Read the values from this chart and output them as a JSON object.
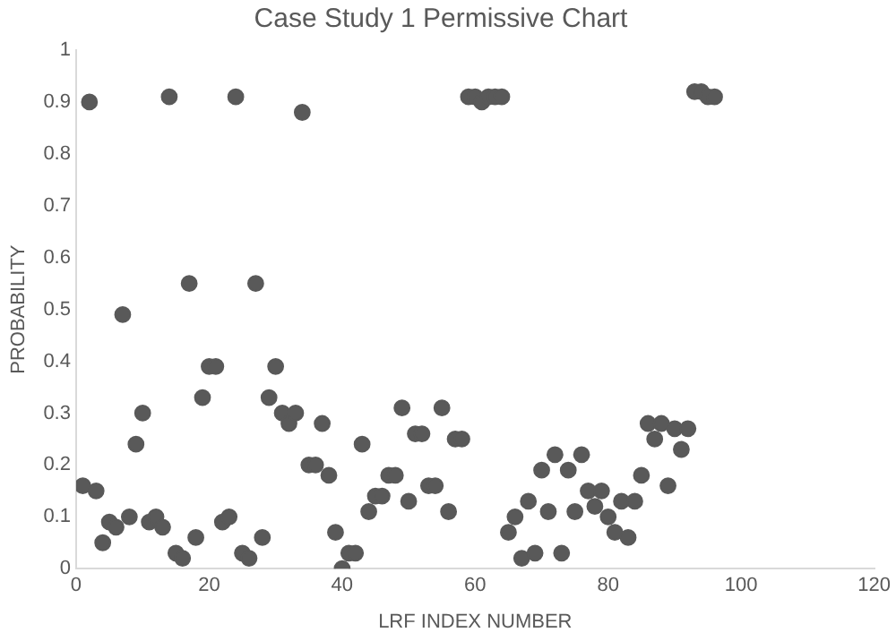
{
  "chart_data": {
    "type": "scatter",
    "title": "Case Study 1 Permissive Chart",
    "xlabel": "LRF INDEX NUMBER",
    "ylabel": "PROBABILITY",
    "x": [
      1,
      2,
      3,
      4,
      5,
      6,
      7,
      8,
      9,
      10,
      11,
      12,
      13,
      14,
      15,
      16,
      17,
      18,
      19,
      20,
      21,
      22,
      23,
      24,
      25,
      26,
      27,
      28,
      29,
      30,
      31,
      32,
      33,
      34,
      35,
      36,
      37,
      38,
      39,
      40,
      41,
      42,
      43,
      44,
      45,
      46,
      47,
      48,
      49,
      50,
      51,
      52,
      53,
      54,
      55,
      56,
      57,
      58,
      59,
      60,
      61,
      62,
      63,
      64,
      65,
      66,
      67,
      68,
      69,
      70,
      71,
      72,
      73,
      74,
      75,
      76,
      77,
      78,
      79,
      80,
      81,
      82,
      83,
      84,
      85,
      86,
      87,
      88,
      89,
      90,
      91,
      92,
      93,
      94,
      95,
      96
    ],
    "series": [
      {
        "color": "#595959",
        "values": [
          0.16,
          0.9,
          0.15,
          0.05,
          0.09,
          0.08,
          0.49,
          0.1,
          0.24,
          0.3,
          0.09,
          0.1,
          0.08,
          0.91,
          0.03,
          0.02,
          0.55,
          0.06,
          0.33,
          0.39,
          0.39,
          0.09,
          0.1,
          0.91,
          0.03,
          0.02,
          0.55,
          0.06,
          0.33,
          0.39,
          0.3,
          0.28,
          0.3,
          0.88,
          0.2,
          0.2,
          0.28,
          0.18,
          0.07,
          0,
          0.03,
          0.03,
          0.24,
          0.11,
          0.14,
          0.14,
          0.18,
          0.18,
          0.31,
          0.13,
          0.26,
          0.26,
          0.16,
          0.16,
          0.31,
          0.11,
          0.25,
          0.25,
          0.91,
          0.91,
          0.9,
          0.91,
          0.91,
          0.91,
          0.07,
          0.1,
          0.02,
          0.13,
          0.03,
          0.19,
          0.11,
          0.22,
          0.03,
          0.19,
          0.11,
          0.22,
          0.15,
          0.12,
          0.15,
          0.1,
          0.07,
          0.13,
          0.06,
          0.13,
          0.18,
          0.28,
          0.25,
          0.28,
          0.16,
          0.27,
          0.23,
          0.27,
          0.92,
          0.92,
          0.91,
          0.91
        ]
      }
    ],
    "xlim": [
      0,
      120
    ],
    "xticks": [
      0,
      20,
      40,
      60,
      80,
      100,
      120
    ],
    "ylim": [
      0,
      1
    ],
    "yticks": [
      0,
      0.1,
      0.2,
      0.3,
      0.4,
      0.5,
      0.6,
      0.7,
      0.8,
      0.9,
      1
    ],
    "grid": false,
    "legend": false,
    "marker": "circle"
  }
}
